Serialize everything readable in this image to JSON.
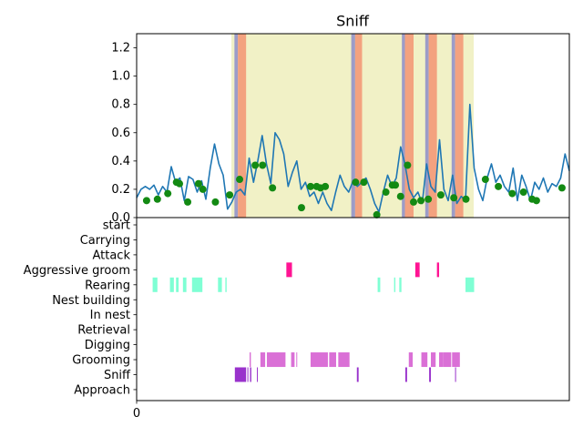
{
  "chart_data": [
    {
      "type": "line",
      "title": "Sniff",
      "xlim": [
        0,
        100
      ],
      "ylim": [
        0,
        1.3
      ],
      "yticks": [
        0.0,
        0.2,
        0.4,
        0.6,
        0.8,
        1.0,
        1.2
      ],
      "ytick_labels": [
        "0.0",
        "0.2",
        "0.4",
        "0.6",
        "0.8",
        "1.0",
        "1.2"
      ],
      "shaded_regions": [
        {
          "x0": 21.9,
          "x1": 77.9,
          "color": "#f1f1c6"
        },
        {
          "x0": 22.6,
          "x1": 23.4,
          "color": "#9c9cc8"
        },
        {
          "x0": 23.4,
          "x1": 25.3,
          "color": "#f3a27f"
        },
        {
          "x0": 49.6,
          "x1": 50.5,
          "color": "#9c9cc8"
        },
        {
          "x0": 50.5,
          "x1": 52.1,
          "color": "#f3a27f"
        },
        {
          "x0": 61.3,
          "x1": 62.0,
          "color": "#9c9cc8"
        },
        {
          "x0": 62.0,
          "x1": 64.0,
          "color": "#f3a27f"
        },
        {
          "x0": 66.7,
          "x1": 67.5,
          "color": "#9c9cc8"
        },
        {
          "x0": 67.5,
          "x1": 69.4,
          "color": "#f3a27f"
        },
        {
          "x0": 72.8,
          "x1": 73.6,
          "color": "#9c9cc8"
        },
        {
          "x0": 73.6,
          "x1": 75.5,
          "color": "#f3a27f"
        }
      ],
      "series": [
        {
          "color": "#1f77b4",
          "x": [
            0,
            1,
            2,
            3,
            4,
            5,
            6,
            7,
            8,
            9,
            10,
            11,
            12,
            13,
            14,
            15,
            16,
            17,
            18,
            19,
            20,
            21,
            22,
            23,
            24,
            25,
            26,
            27,
            28,
            29,
            30,
            31,
            32,
            33,
            34,
            35,
            36,
            37,
            38,
            39,
            40,
            41,
            42,
            43,
            44,
            45,
            46,
            47,
            48,
            49,
            50,
            51,
            52,
            53,
            54,
            55,
            56,
            57,
            58,
            59,
            60,
            61,
            62,
            63,
            64,
            65,
            66,
            67,
            68,
            69,
            70,
            71,
            72,
            73,
            74,
            75,
            76,
            77,
            78,
            79,
            80,
            81,
            82,
            83,
            84,
            85,
            86,
            87,
            88,
            89,
            90,
            91,
            92,
            93,
            94,
            95,
            96,
            97,
            98,
            99,
            100
          ],
          "y": [
            0.14,
            0.2,
            0.22,
            0.2,
            0.23,
            0.16,
            0.22,
            0.18,
            0.36,
            0.25,
            0.28,
            0.12,
            0.29,
            0.27,
            0.18,
            0.26,
            0.13,
            0.35,
            0.52,
            0.38,
            0.3,
            0.06,
            0.11,
            0.18,
            0.2,
            0.16,
            0.42,
            0.25,
            0.4,
            0.58,
            0.38,
            0.24,
            0.6,
            0.55,
            0.45,
            0.22,
            0.32,
            0.4,
            0.2,
            0.25,
            0.15,
            0.18,
            0.1,
            0.18,
            0.1,
            0.05,
            0.18,
            0.3,
            0.22,
            0.18,
            0.26,
            0.22,
            0.25,
            0.28,
            0.2,
            0.1,
            0.04,
            0.18,
            0.3,
            0.22,
            0.28,
            0.5,
            0.38,
            0.2,
            0.14,
            0.18,
            0.1,
            0.38,
            0.22,
            0.18,
            0.55,
            0.2,
            0.12,
            0.3,
            0.1,
            0.15,
            0.12,
            0.8,
            0.35,
            0.2,
            0.12,
            0.28,
            0.38,
            0.25,
            0.3,
            0.22,
            0.18,
            0.35,
            0.12,
            0.3,
            0.22,
            0.12,
            0.25,
            0.2,
            0.28,
            0.18,
            0.24,
            0.22,
            0.28,
            0.45,
            0.33
          ]
        },
        {
          "type": "scatter",
          "color": "#138a13",
          "x": [
            2.3,
            4.8,
            7.2,
            9.2,
            9.9,
            11.8,
            14.3,
            15.3,
            18.2,
            21.5,
            23.8,
            27.4,
            29.1,
            31.4,
            38.1,
            40.2,
            41.6,
            42.5,
            43.6,
            50.6,
            52.5,
            55.5,
            57.6,
            59.1,
            59.8,
            61.0,
            62.6,
            64.0,
            65.7,
            67.4,
            70.3,
            73.3,
            76.1,
            80.6,
            83.6,
            86.8,
            89.4,
            91.4,
            92.4,
            98.3
          ],
          "y": [
            0.12,
            0.13,
            0.17,
            0.25,
            0.24,
            0.11,
            0.24,
            0.2,
            0.11,
            0.16,
            0.27,
            0.37,
            0.37,
            0.21,
            0.07,
            0.22,
            0.22,
            0.21,
            0.22,
            0.25,
            0.25,
            0.02,
            0.18,
            0.23,
            0.23,
            0.15,
            0.37,
            0.11,
            0.12,
            0.13,
            0.16,
            0.14,
            0.13,
            0.27,
            0.22,
            0.17,
            0.18,
            0.13,
            0.12,
            0.21
          ]
        }
      ]
    },
    {
      "type": "event_raster",
      "xlim": [
        0,
        100
      ],
      "xticks": [
        0
      ],
      "xtick_labels": [
        "0"
      ],
      "categories": [
        "start",
        "Carrying",
        "Attack",
        "Aggressive groom",
        "Rearing",
        "Nest building",
        "In nest",
        "Retrieval",
        "Digging",
        "Grooming",
        "Sniff",
        "Approach"
      ],
      "events": [
        {
          "category": "Aggressive groom",
          "color": "#ff1493",
          "intervals": [
            [
              34.6,
              35.9
            ],
            [
              64.4,
              65.4
            ],
            [
              69.4,
              69.9
            ]
          ]
        },
        {
          "category": "Rearing",
          "color": "#7fffd4",
          "intervals": [
            [
              3.7,
              4.8
            ],
            [
              7.7,
              8.6
            ],
            [
              9.1,
              9.7
            ],
            [
              10.7,
              11.5
            ],
            [
              12.8,
              15.2
            ],
            [
              18.8,
              19.7
            ],
            [
              20.5,
              20.8
            ],
            [
              55.7,
              56.3
            ],
            [
              59.5,
              59.8
            ],
            [
              60.7,
              61.2
            ],
            [
              76.0,
              78.0
            ]
          ]
        },
        {
          "category": "Grooming",
          "color": "#da70d6",
          "intervals": [
            [
              26.1,
              26.4
            ],
            [
              28.6,
              29.7
            ],
            [
              30.1,
              34.4
            ],
            [
              35.7,
              36.5
            ],
            [
              36.9,
              37.1
            ],
            [
              40.2,
              44.2
            ],
            [
              44.5,
              46.1
            ],
            [
              46.6,
              49.2
            ],
            [
              62.9,
              63.8
            ],
            [
              65.8,
              67.2
            ],
            [
              68.0,
              69.1
            ],
            [
              69.9,
              70.9
            ],
            [
              70.9,
              72.7
            ],
            [
              72.9,
              74.7
            ]
          ]
        },
        {
          "category": "Sniff",
          "color": "#9932cc",
          "intervals": [
            [
              22.7,
              25.3
            ],
            [
              25.6,
              25.8
            ],
            [
              26.2,
              26.5
            ],
            [
              27.8,
              28.0
            ],
            [
              50.9,
              51.3
            ],
            [
              62.1,
              62.5
            ],
            [
              67.6,
              68.0
            ],
            [
              73.6,
              73.8
            ]
          ]
        }
      ]
    }
  ]
}
